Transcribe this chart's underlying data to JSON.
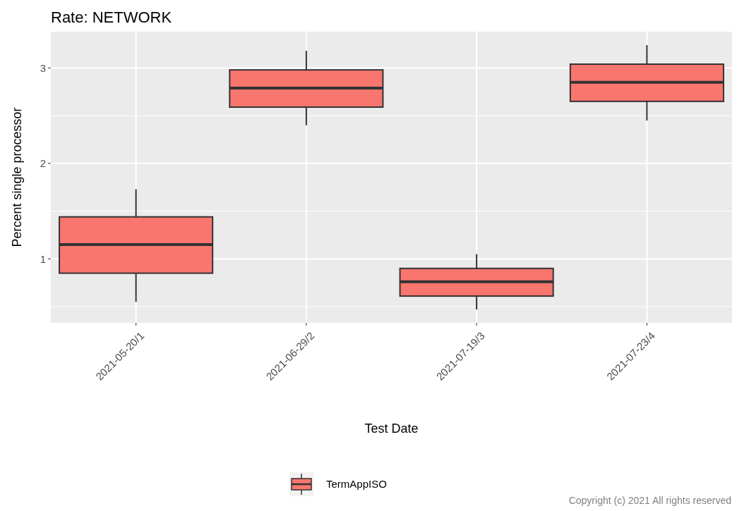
{
  "chart_data": {
    "type": "box",
    "title": "Rate: NETWORK",
    "xlabel": "Test Date",
    "ylabel": "Percent single processor",
    "categories": [
      "2021-05-20/1",
      "2021-06-29/2",
      "2021-07-19/3",
      "2021-07-23/4"
    ],
    "series": [
      {
        "name": "TermAppISO",
        "color": "#f8766d",
        "boxes": [
          {
            "low": 0.55,
            "q1": 0.85,
            "median": 1.15,
            "q3": 1.44,
            "high": 1.73
          },
          {
            "low": 2.4,
            "q1": 2.59,
            "median": 2.79,
            "q3": 2.98,
            "high": 3.18
          },
          {
            "low": 0.47,
            "q1": 0.61,
            "median": 0.76,
            "q3": 0.9,
            "high": 1.05
          },
          {
            "low": 2.45,
            "q1": 2.65,
            "median": 2.85,
            "q3": 3.04,
            "high": 3.24
          }
        ]
      }
    ],
    "ylim": [
      0.33,
      3.38
    ],
    "yticks": [
      1,
      2,
      3
    ],
    "grid": true,
    "legend": "bottom",
    "annotations": [
      "Copyright (c) 2021 All rights reserved"
    ]
  }
}
